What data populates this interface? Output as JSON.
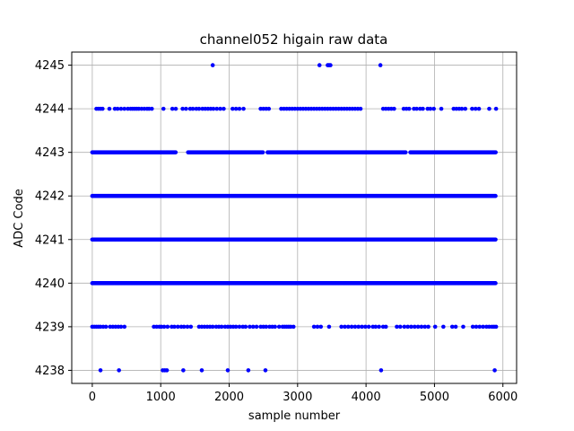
{
  "chart_data": {
    "type": "scatter",
    "title": "channel052 higain raw data",
    "xlabel": "sample number",
    "ylabel": "ADC Code",
    "xlim": [
      -300,
      6200
    ],
    "ylim": [
      4237.7,
      4245.3
    ],
    "xticks": [
      0,
      1000,
      2000,
      3000,
      4000,
      5000,
      6000
    ],
    "yticks": [
      4238,
      4239,
      4240,
      4241,
      4242,
      4243,
      4244,
      4245
    ],
    "grid": true,
    "marker_color": "#0000ff",
    "n_samples": 5900,
    "levels": [
      {
        "y": 4245,
        "x": [
          1760,
          3320,
          3440,
          3460,
          3480,
          4210
        ]
      },
      {
        "y": 4244,
        "x": [
          60,
          90,
          120,
          150,
          250,
          330,
          370,
          420,
          470,
          520,
          560,
          590,
          620,
          650,
          680,
          720,
          760,
          800,
          830,
          870,
          1040,
          1170,
          1220,
          1320,
          1370,
          1430,
          1470,
          1520,
          1560,
          1610,
          1650,
          1690,
          1730,
          1770,
          1820,
          1870,
          1920,
          2050,
          2100,
          2150,
          2210,
          2460,
          2500,
          2540,
          2580,
          2760,
          2800,
          2840,
          2880,
          2920,
          2960,
          3000,
          3040,
          3080,
          3120,
          3160,
          3200,
          3240,
          3280,
          3320,
          3360,
          3400,
          3440,
          3480,
          3520,
          3560,
          3600,
          3640,
          3680,
          3720,
          3760,
          3800,
          3840,
          3880,
          3920,
          4250,
          4290,
          4330,
          4370,
          4410,
          4550,
          4590,
          4630,
          4700,
          4740,
          4790,
          4830,
          4900,
          4940,
          4990,
          5100,
          5280,
          5320,
          5360,
          5400,
          5450,
          5550,
          5600,
          5650,
          5800,
          5900
        ]
      },
      {
        "y": 4239,
        "x": [
          0,
          30,
          60,
          90,
          120,
          160,
          200,
          260,
          300,
          340,
          380,
          420,
          470,
          900,
          940,
          980,
          1010,
          1050,
          1100,
          1160,
          1200,
          1250,
          1300,
          1340,
          1390,
          1440,
          1560,
          1600,
          1640,
          1680,
          1720,
          1760,
          1810,
          1850,
          1890,
          1940,
          1980,
          2020,
          2060,
          2100,
          2150,
          2200,
          2240,
          2300,
          2350,
          2400,
          2460,
          2500,
          2540,
          2590,
          2630,
          2670,
          2730,
          2780,
          2810,
          2840,
          2870,
          2900,
          2940,
          3240,
          3290,
          3340,
          3460,
          3640,
          3690,
          3740,
          3790,
          3840,
          3890,
          3940,
          3990,
          4040,
          4100,
          4140,
          4190,
          4250,
          4290,
          4450,
          4500,
          4560,
          4610,
          4660,
          4710,
          4760,
          4810,
          4860,
          4910,
          5010,
          5130,
          5260,
          5310,
          5420,
          5560,
          5610,
          5660,
          5710,
          5760,
          5800,
          5840,
          5870,
          5900
        ]
      },
      {
        "y": 4238,
        "x": [
          120,
          390,
          1030,
          1060,
          1090,
          1330,
          1600,
          1980,
          2280,
          2530,
          4220,
          5880
        ]
      }
    ]
  }
}
